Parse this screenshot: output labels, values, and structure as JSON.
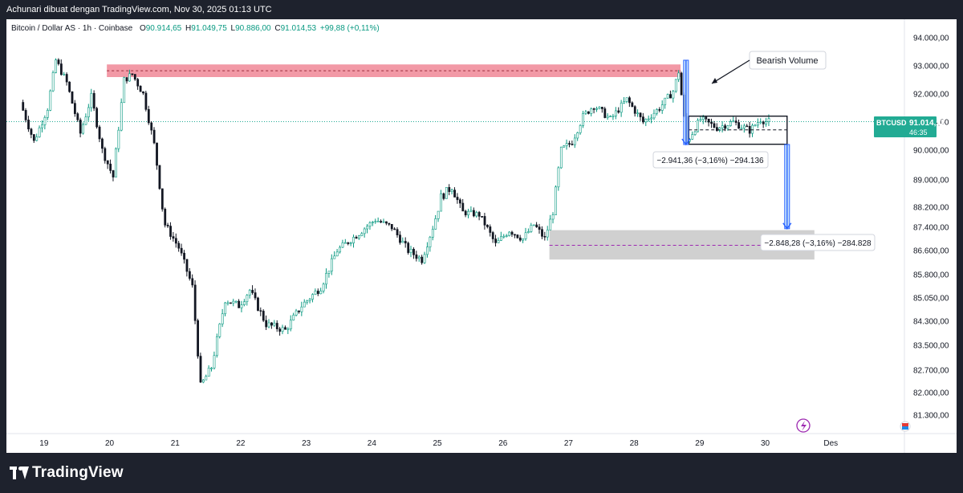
{
  "header": {
    "caption": "Achunari dibuat dengan TradingView.com, Nov 30, 2025 01:13 UTC"
  },
  "legend": {
    "symbol": "Bitcoin / Dollar AS · 1h · Coinbase",
    "open_label": "O",
    "open": "90.914,65",
    "high_label": "H",
    "high": "91.049,75",
    "low_label": "L",
    "low": "90.886,00",
    "close_label": "C",
    "close": "91.014,53",
    "change": "+99,88 (+0,11%)"
  },
  "price_tag": {
    "ticker": "BTCUSD",
    "price": "91.014,53",
    "countdown": "46:35"
  },
  "annotations": {
    "bearish_volume": "Bearish Volume",
    "measure_1": "−2.941,36 (−3,16%) −294.136",
    "measure_2": "−2.848,28 (−3,16%) −284.828"
  },
  "footer": {
    "brand": "TradingView"
  },
  "colors": {
    "up": "#089981",
    "down": "#131722",
    "supply": "#f08796",
    "demand": "#c8c8c8",
    "tag": "#22ab94",
    "arrow": "#2962ff"
  },
  "chart_data": {
    "type": "candlestick",
    "title": "Bitcoin / Dollar AS · 1h · Coinbase",
    "x_ticks": [
      "19",
      "20",
      "21",
      "22",
      "23",
      "24",
      "25",
      "26",
      "27",
      "28",
      "29",
      "30",
      "Des"
    ],
    "y_ticks": [
      "94.000,00",
      "93.000,00",
      "92.000,00",
      "91.000,00",
      "90.000,00",
      "89.000,00",
      "88.200,00",
      "87.400,00",
      "86.600,00",
      "85.800,00",
      "85.050,00",
      "84.300,00",
      "83.500,00",
      "82.700,00",
      "82.000,00",
      "81.300,00"
    ],
    "y_ticks_values": [
      94000,
      93000,
      92000,
      91000,
      90000,
      89000,
      88200,
      87400,
      86600,
      85800,
      85050,
      84300,
      83500,
      82700,
      82000,
      81300
    ],
    "ylim": [
      80800,
      94500
    ],
    "grid": false,
    "last_price": 91014.53,
    "price_path": [
      [
        "Nov 18 16:00",
        91700
      ],
      [
        "Nov 18 21:00",
        90300
      ],
      [
        "Nov 19 02:00",
        91500
      ],
      [
        "Nov 19 05:00",
        93200
      ],
      [
        "Nov 19 09:00",
        92400
      ],
      [
        "Nov 19 14:00",
        90600
      ],
      [
        "Nov 19 18:00",
        91900
      ],
      [
        "Nov 19 22:00",
        90000
      ],
      [
        "Nov 20 02:00",
        89100
      ],
      [
        "Nov 20 06:00",
        92500
      ],
      [
        "Nov 20 09:00",
        92700
      ],
      [
        "Nov 20 13:00",
        92000
      ],
      [
        "Nov 20 17:00",
        90200
      ],
      [
        "Nov 20 21:00",
        87500
      ],
      [
        "Nov 21 02:00",
        86700
      ],
      [
        "Nov 21 07:00",
        85400
      ],
      [
        "Nov 21 10:00",
        82200
      ],
      [
        "Nov 21 14:00",
        82800
      ],
      [
        "Nov 21 19:00",
        85000
      ],
      [
        "Nov 22 00:00",
        84800
      ],
      [
        "Nov 22 04:00",
        85300
      ],
      [
        "Nov 22 10:00",
        84200
      ],
      [
        "Nov 22 17:00",
        84000
      ],
      [
        "Nov 22 23:00",
        84800
      ],
      [
        "Nov 23 06:00",
        85400
      ],
      [
        "Nov 23 12:00",
        86600
      ],
      [
        "Nov 23 20:00",
        87200
      ],
      [
        "Nov 24 02:00",
        87700
      ],
      [
        "Nov 24 08:00",
        87400
      ],
      [
        "Nov 24 14:00",
        86600
      ],
      [
        "Nov 24 19:00",
        86300
      ],
      [
        "Nov 24 23:00",
        87400
      ],
      [
        "Nov 25 02:00",
        88500
      ],
      [
        "Nov 25 06:00",
        88800
      ],
      [
        "Nov 25 10:00",
        88000
      ],
      [
        "Nov 25 16:00",
        87900
      ],
      [
        "Nov 25 22:00",
        86800
      ],
      [
        "Nov 26 03:00",
        87300
      ],
      [
        "Nov 26 08:00",
        87000
      ],
      [
        "Nov 26 12:00",
        87500
      ],
      [
        "Nov 26 16:00",
        87000
      ],
      [
        "Nov 26 19:00",
        88000
      ],
      [
        "Nov 26 22:00",
        90000
      ],
      [
        "Nov 27 02:00",
        90300
      ],
      [
        "Nov 27 06:00",
        91200
      ],
      [
        "Nov 27 10:00",
        91600
      ],
      [
        "Nov 27 16:00",
        91100
      ],
      [
        "Nov 27 22:00",
        91800
      ],
      [
        "Nov 28 04:00",
        91000
      ],
      [
        "Nov 28 10:00",
        91500
      ],
      [
        "Nov 28 15:00",
        92100
      ],
      [
        "Nov 28 17:00",
        92800
      ],
      [
        "Nov 28 20:00",
        90300
      ],
      [
        "Nov 29 01:00",
        91100
      ],
      [
        "Nov 29 07:00",
        90800
      ],
      [
        "Nov 29 13:00",
        91000
      ],
      [
        "Nov 29 19:00",
        90700
      ],
      [
        "Nov 29 23:00",
        91100
      ],
      [
        "Nov 30 01:00",
        91014.53
      ]
    ],
    "supply_zone": {
      "from": "Nov 19 23:00",
      "to": "Nov 28 17:00",
      "top": 93050,
      "bottom": 92600
    },
    "demand_zone": {
      "from": "Nov 26 17:00",
      "to": "Nov 30 18:00",
      "top": 87300,
      "bottom": 86300,
      "mid": 86780
    },
    "range_box": {
      "from": "Nov 28 20:00",
      "to": "Nov 30 08:00",
      "top": 91210,
      "bottom": 90210,
      "mid": 90720
    },
    "measures": [
      {
        "label": "−2.941,36 (−3,16%) −294.136",
        "at": "Nov 28 19:00",
        "from": 93200,
        "to": 90200
      },
      {
        "label": "−2.848,28 (−3,16%) −284.828",
        "at": "Nov 30 08:00",
        "from": 90200,
        "to": 87350
      }
    ]
  }
}
